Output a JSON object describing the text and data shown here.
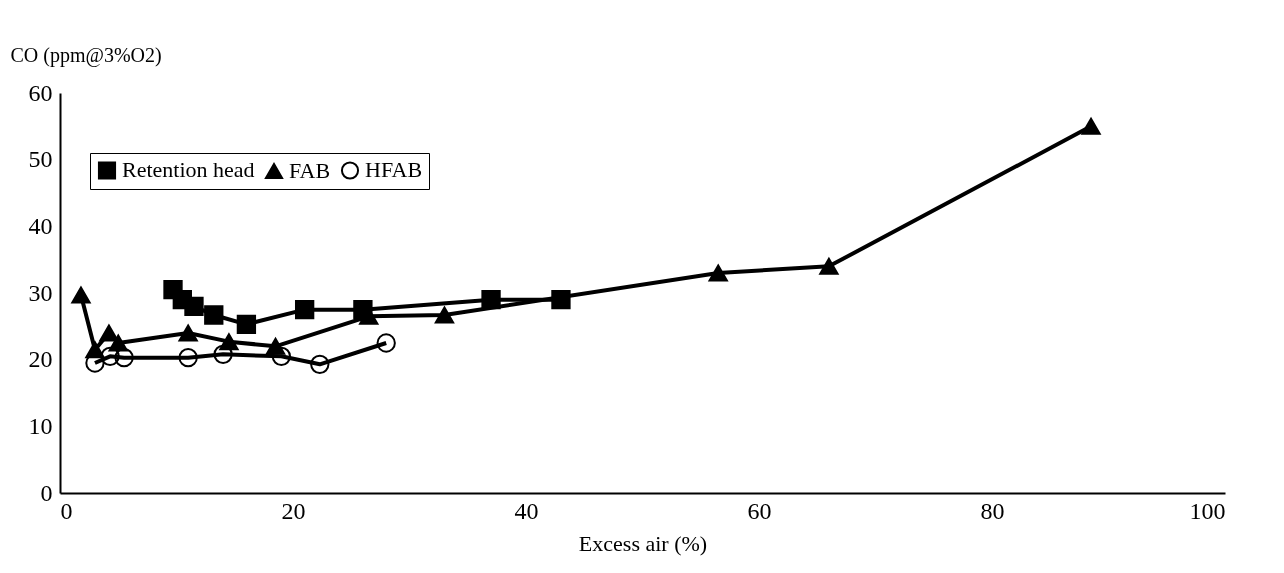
{
  "chart_data": {
    "type": "line",
    "xlabel": "Excess air (%)",
    "ylabel": "CO (ppm@3%O2)",
    "xlim": [
      0,
      100
    ],
    "xticks": [
      0,
      20,
      40,
      60,
      80,
      100
    ],
    "ylim": [
      0,
      60
    ],
    "yticks": [
      0,
      10,
      20,
      30,
      40,
      50,
      60
    ],
    "grid": false,
    "legend": "top left",
    "series": [
      {
        "name": "Retention head",
        "color": "#000000",
        "marker": "square",
        "x": [
          9.7,
          10.5,
          11.5,
          13.2,
          16,
          21,
          26,
          37,
          43
        ],
        "values": [
          30.5,
          29,
          28,
          26.7,
          25.3,
          27.5,
          27.5,
          29,
          29
        ]
      },
      {
        "name": "FAB",
        "color": "#000000",
        "marker": "triangle",
        "x": [
          1.8,
          3,
          4.2,
          5,
          11,
          14.5,
          18.5,
          26.5,
          33,
          56.5,
          66,
          88.5
        ],
        "values": [
          29.7,
          21.5,
          24,
          22.5,
          24,
          22.7,
          22,
          26.5,
          26.7,
          33,
          34,
          55
        ]
      },
      {
        "name": "HFAB",
        "color": "#000000",
        "marker": "circle",
        "x": [
          3,
          4.3,
          5.5,
          11,
          14,
          19,
          22.3,
          28
        ],
        "values": [
          19.5,
          20.5,
          20.3,
          20.3,
          20.8,
          20.5,
          19.3,
          22.5
        ]
      }
    ]
  }
}
